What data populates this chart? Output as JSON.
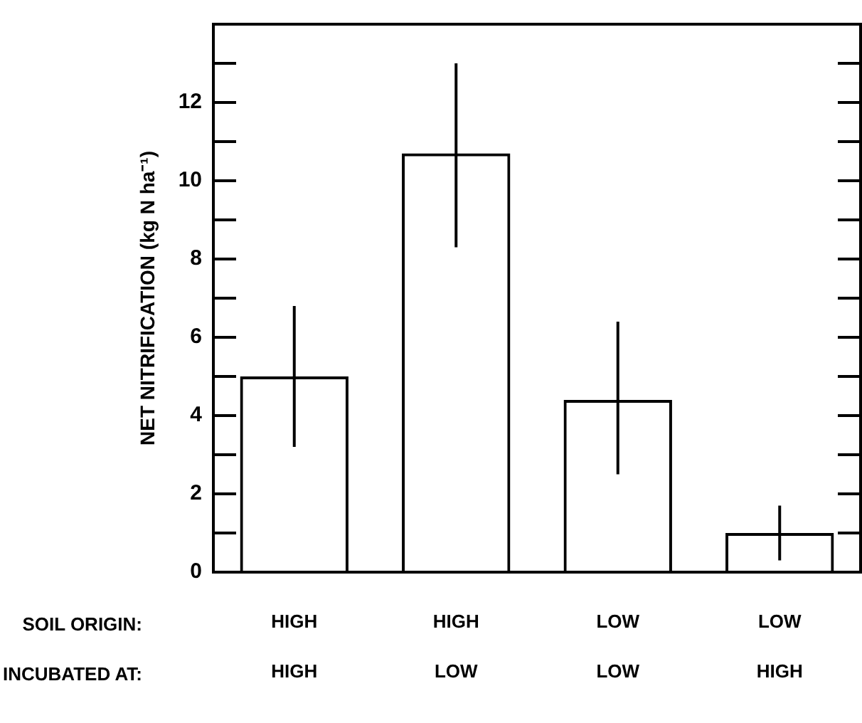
{
  "chart_data": {
    "type": "bar",
    "ylabel": "NET NITRIFICATION (kg N ha⁻¹)",
    "categories": [
      "HIGH\nHIGH",
      "HIGH\nLOW",
      "LOW\nLOW",
      "LOW\nHIGH"
    ],
    "values": [
      5.0,
      10.7,
      4.4,
      1.0
    ],
    "errors": [
      [
        3.2,
        6.8
      ],
      [
        8.3,
        13.0
      ],
      [
        2.5,
        6.4
      ],
      [
        0.3,
        1.7
      ]
    ],
    "color": "#000000",
    "ylim": [
      0,
      14
    ],
    "yticks": [
      0,
      {
        "value": 1,
        "label": null
      },
      2,
      {
        "value": 3,
        "label": null
      },
      4,
      {
        "value": 5,
        "label": null
      },
      6,
      {
        "value": 7,
        "label": null
      },
      8,
      {
        "value": 9,
        "label": null
      },
      10,
      {
        "value": 11,
        "label": null
      },
      12,
      {
        "value": 13,
        "label": null
      }
    ],
    "annotations": [
      "SOIL ORIGIN:",
      "INCUBATED AT:"
    ],
    "grid": false,
    "legend": false
  }
}
